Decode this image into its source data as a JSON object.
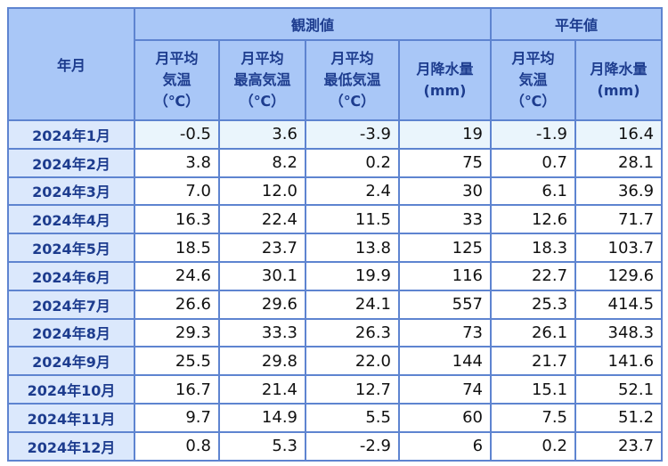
{
  "table": {
    "corner": "年月",
    "groups": [
      "観測値",
      "平年値"
    ],
    "columns": [
      [
        "月平均",
        "気温",
        "（℃）"
      ],
      [
        "月平均",
        "最高気温",
        "（℃）"
      ],
      [
        "月平均",
        "最低気温",
        "（℃）"
      ],
      [
        "月降水量",
        "(mm)"
      ],
      [
        "月平均",
        "気温",
        "（℃）"
      ],
      [
        "月降水量",
        "(mm)"
      ]
    ],
    "rows": [
      [
        "2024年1月",
        "-0.5",
        "3.6",
        "-3.9",
        "19",
        "-1.9",
        "16.4"
      ],
      [
        "2024年2月",
        "3.8",
        "8.2",
        "0.2",
        "75",
        "0.7",
        "28.1"
      ],
      [
        "2024年3月",
        "7.0",
        "12.0",
        "2.4",
        "30",
        "6.1",
        "36.9"
      ],
      [
        "2024年4月",
        "16.3",
        "22.4",
        "11.5",
        "33",
        "12.6",
        "71.7"
      ],
      [
        "2024年5月",
        "18.5",
        "23.7",
        "13.8",
        "125",
        "18.3",
        "103.7"
      ],
      [
        "2024年6月",
        "24.6",
        "30.1",
        "19.9",
        "116",
        "22.7",
        "129.6"
      ],
      [
        "2024年7月",
        "26.6",
        "29.6",
        "24.1",
        "557",
        "25.3",
        "414.5"
      ],
      [
        "2024年8月",
        "29.3",
        "33.3",
        "26.3",
        "73",
        "26.1",
        "348.3"
      ],
      [
        "2024年9月",
        "25.5",
        "29.8",
        "22.0",
        "144",
        "21.7",
        "141.6"
      ],
      [
        "2024年10月",
        "16.7",
        "21.4",
        "12.7",
        "74",
        "15.1",
        "52.1"
      ],
      [
        "2024年11月",
        "9.7",
        "14.9",
        "5.5",
        "60",
        "7.5",
        "51.2"
      ],
      [
        "2024年12月",
        "0.8",
        "5.3",
        "-2.9",
        "6",
        "0.2",
        "23.7"
      ]
    ]
  }
}
